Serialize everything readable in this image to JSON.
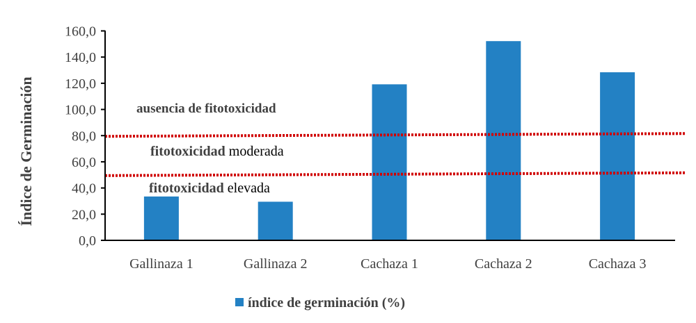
{
  "chart_data": {
    "type": "bar",
    "title": "",
    "xlabel": "",
    "ylabel": "Índice de Germinación",
    "ylim": [
      0,
      160
    ],
    "yticks": [
      "0,0",
      "20,0",
      "40,0",
      "60,0",
      "80,0",
      "100,0",
      "120,0",
      "140,0",
      "160,0"
    ],
    "grid": false,
    "categories": [
      "Gallinaza 1",
      "Gallinaza 2",
      "Cachaza 1",
      "Cachaza 2",
      "Cachaza 3"
    ],
    "series": [
      {
        "name": "índice de germinación (%)",
        "values": [
          33.5,
          29.5,
          119.2,
          152.2,
          128.4
        ],
        "color": "#2381c4"
      }
    ],
    "legend": "bottom",
    "reference_lines": [
      {
        "value": 80,
        "color": "#d00000",
        "style": "dotted"
      },
      {
        "value": 50,
        "color": "#d00000",
        "style": "dotted"
      }
    ],
    "annotations": [
      {
        "bold": "ausencia de fitotoxicidad",
        "regular": ""
      },
      {
        "bold": "fitotoxicidad",
        "regular": " moderada"
      },
      {
        "bold": "fitotoxicidad",
        "regular": " elevada"
      }
    ]
  }
}
